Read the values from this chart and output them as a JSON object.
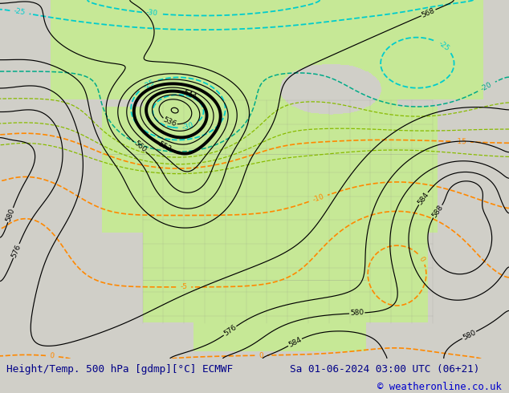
{
  "title_left": "Height/Temp. 500 hPa [gdmp][°C] ECMWF",
  "title_right": "Sa 01-06-2024 03:00 UTC (06+21)",
  "copyright": "© weatheronline.co.uk",
  "bg_color": "#d0cfc8",
  "text_bar_color": "#d8d7d0",
  "land_green": "#c8e896",
  "figsize": [
    6.34,
    4.9
  ],
  "dpi": 100
}
